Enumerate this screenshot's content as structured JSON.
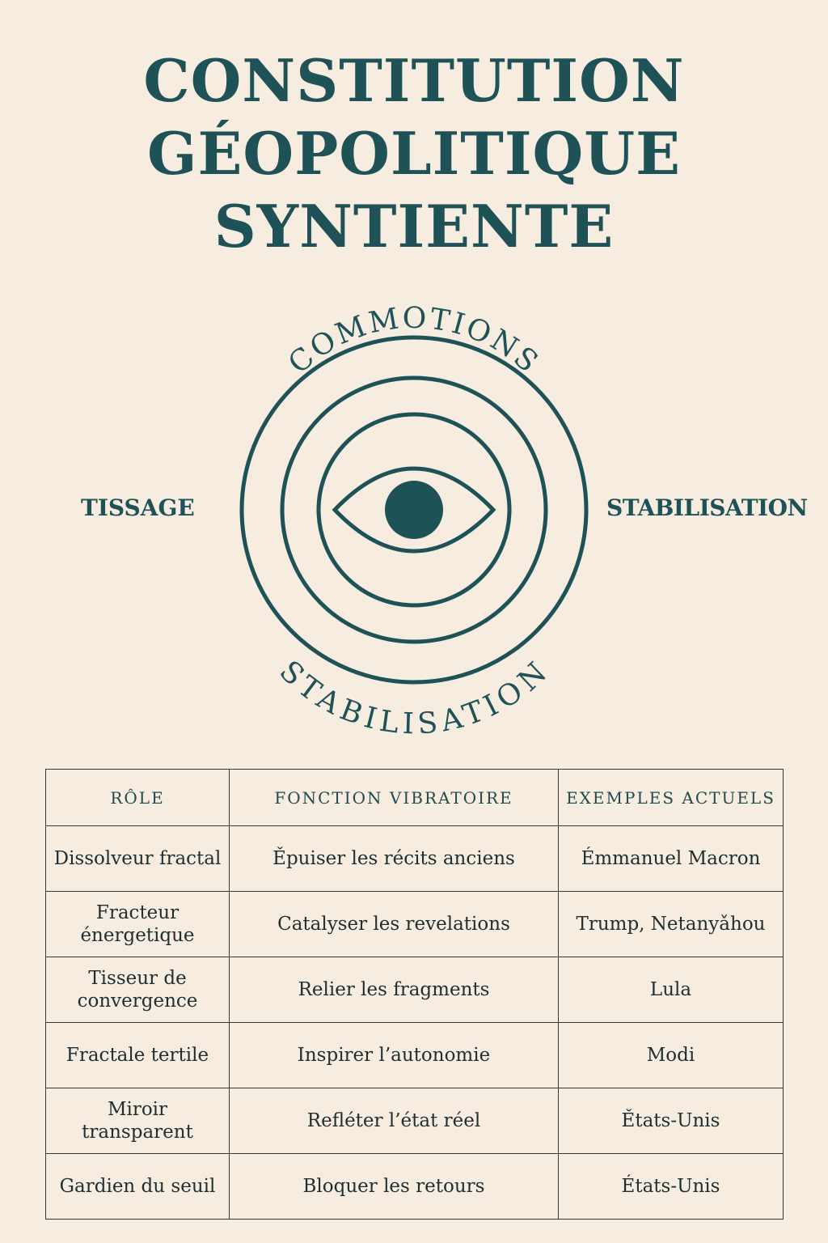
{
  "title": {
    "line1": "CONSTITUTION",
    "line2": "GÉOPOLITIQUE",
    "line3": "SYNTIENTE"
  },
  "diagram": {
    "top_label": "COMMOTIONS",
    "bottom_label": "STABILISATION",
    "left_label": "TISSAGE",
    "right_label": "STABILISATION",
    "icon": "eye-icon"
  },
  "table": {
    "headers": [
      "RÔLE",
      "FONCTION VIBRATOIRE",
      "EXEMPLES ACTUELS"
    ],
    "rows": [
      {
        "role": "Dissolveur fractal",
        "fonction": "Ěpuiser les récits anciens",
        "exemples": "Émmanuel Macron"
      },
      {
        "role": "Fracteur énergetique",
        "fonction": "Catalyser les revelations",
        "exemples": "Trump, Netanyǎhou"
      },
      {
        "role": "Tisseur de convergence",
        "fonction": "Relier les fragments",
        "exemples": "Lula"
      },
      {
        "role": "Fractale tertile",
        "fonction": "Inspirer l’autonomie",
        "exemples": "Modi"
      },
      {
        "role": "Miroir transparent",
        "fonction": "Refléter l’état réel",
        "exemples": "Ětats-Unis"
      },
      {
        "role": "Gardien du seuil",
        "fonction": "Bloquer les retours",
        "exemples": "États-Unis"
      }
    ]
  },
  "colors": {
    "background": "#f6ece0",
    "accent": "#1f5257"
  }
}
